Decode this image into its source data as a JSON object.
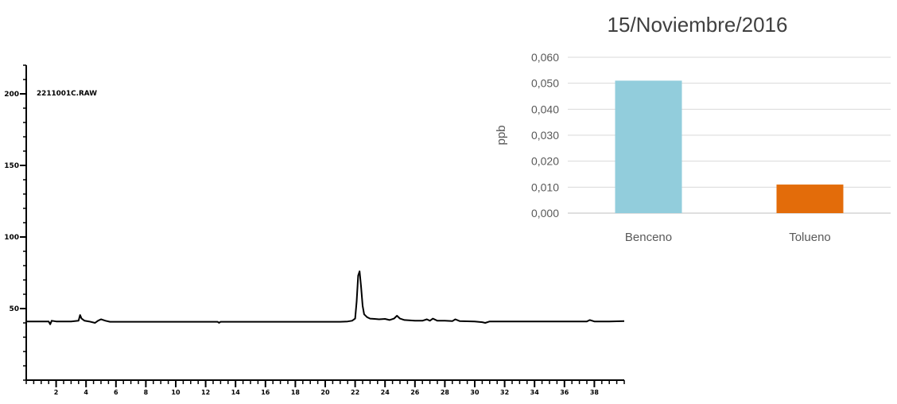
{
  "chart_data": [
    {
      "type": "line",
      "title": "",
      "annotation": "2211001C.RAW",
      "xlabel": "",
      "ylabel": "",
      "xlim": [
        0,
        40
      ],
      "ylim": [
        0,
        220
      ],
      "grid": false,
      "x_tick_labels": [
        "2",
        "4",
        "6",
        "8",
        "10",
        "12",
        "14",
        "16",
        "18",
        "20",
        "22",
        "24",
        "26",
        "28",
        "30",
        "32",
        "34",
        "36",
        "38"
      ],
      "y_tick_labels": [
        "50",
        "100",
        "150",
        "200"
      ],
      "series": [
        {
          "x": [
            0.0,
            1.0,
            1.5,
            1.6,
            1.7,
            2.0,
            2.5,
            3.0,
            3.5,
            3.6,
            3.7,
            3.9,
            4.2,
            4.6,
            4.8,
            5.0,
            5.3,
            5.6,
            6.0,
            8.0,
            10.0,
            12.0,
            12.8,
            12.9,
            13.0,
            14.0,
            16.0,
            18.0,
            20.0,
            21.0,
            21.5,
            21.8,
            22.0,
            22.1,
            22.2,
            22.3,
            22.4,
            22.5,
            22.6,
            22.8,
            23.0,
            23.3,
            23.6,
            24.0,
            24.3,
            24.6,
            24.8,
            25.0,
            25.3,
            25.6,
            26.0,
            26.5,
            26.8,
            27.0,
            27.2,
            27.5,
            28.0,
            28.5,
            28.7,
            29.0,
            30.0,
            30.5,
            30.7,
            31.0,
            32.0,
            34.0,
            36.0,
            37.5,
            37.7,
            38.0,
            39.0,
            40.0
          ],
          "y": [
            41.0,
            41.0,
            41.0,
            39.0,
            41.5,
            41.0,
            41.0,
            41.0,
            41.5,
            45.5,
            43.0,
            41.5,
            41.0,
            40.0,
            41.5,
            42.5,
            41.5,
            40.8,
            40.8,
            40.8,
            40.8,
            40.8,
            40.8,
            40.0,
            40.8,
            40.8,
            40.8,
            40.8,
            40.8,
            40.8,
            41.0,
            41.5,
            43.0,
            55.0,
            73.0,
            76.0,
            65.0,
            52.0,
            46.0,
            44.0,
            43.0,
            42.8,
            42.5,
            42.8,
            42.0,
            43.0,
            45.0,
            43.0,
            42.0,
            41.8,
            41.5,
            41.5,
            42.5,
            41.5,
            43.0,
            41.5,
            41.5,
            41.2,
            42.5,
            41.2,
            41.0,
            40.5,
            40.0,
            41.0,
            41.0,
            41.0,
            41.0,
            41.0,
            42.0,
            41.0,
            41.0,
            41.2
          ]
        }
      ]
    },
    {
      "type": "bar",
      "title": "15/Noviembre/2016",
      "xlabel": "",
      "ylabel": "ppb",
      "ylim": [
        0,
        0.06
      ],
      "grid": true,
      "y_tick_labels": [
        "0,000",
        "0,010",
        "0,020",
        "0,030",
        "0,040",
        "0,050",
        "0,060"
      ],
      "categories": [
        "Benceno",
        "Tolueno"
      ],
      "values": [
        0.051,
        0.011
      ],
      "colors": [
        "#92CDDC",
        "#E36C0A"
      ]
    }
  ]
}
